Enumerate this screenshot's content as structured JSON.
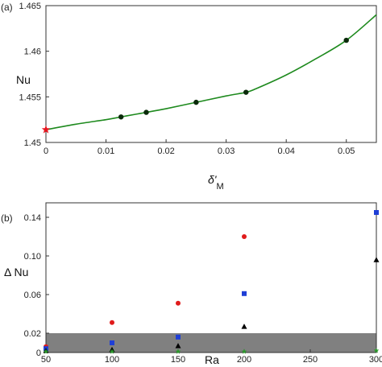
{
  "chart_data": [
    {
      "type": "line",
      "panel_label": "(a)",
      "xlabel": "δ'",
      "xlabel_sub": "M",
      "ylabel": "Nu",
      "xlim": [
        0,
        0.055
      ],
      "ylim": [
        1.45,
        1.465
      ],
      "xticks": [
        0,
        0.01,
        0.02,
        0.03,
        0.04,
        0.05
      ],
      "xtick_labels": [
        "0",
        "0.01",
        "0.02",
        "0.03",
        "0.04",
        "0.05"
      ],
      "yticks": [
        1.45,
        1.455,
        1.46,
        1.465
      ],
      "ytick_labels": [
        "1.45",
        "1.455",
        "1.46",
        "1.465"
      ],
      "curve": {
        "color": "#1e8a1e",
        "x": [
          0,
          0.005,
          0.01,
          0.0125,
          0.015,
          0.0167,
          0.02,
          0.025,
          0.03,
          0.0333,
          0.035,
          0.04,
          0.045,
          0.05,
          0.055
        ],
        "y": [
          1.4514,
          1.452,
          1.4525,
          1.4528,
          1.4531,
          1.4533,
          1.4537,
          1.4544,
          1.4551,
          1.4555,
          1.4559,
          1.4574,
          1.4592,
          1.4612,
          1.464
        ]
      },
      "points": {
        "color": "#0a2a0a",
        "x": [
          0.0125,
          0.0167,
          0.025,
          0.0333,
          0.05
        ],
        "y": [
          1.4528,
          1.4533,
          1.4544,
          1.4555,
          1.4612
        ]
      },
      "star": {
        "x": 0,
        "y": 1.4514,
        "color": "#e8141e"
      },
      "grid": false
    },
    {
      "type": "scatter",
      "panel_label": "(b)",
      "xlabel": "Ra",
      "ylabel": "Δ Nu",
      "xlim": [
        50,
        300
      ],
      "ylim": [
        0,
        0.155
      ],
      "xticks": [
        50,
        100,
        150,
        200,
        250,
        300
      ],
      "xtick_labels": [
        "50",
        "100",
        "150",
        "200",
        "250",
        "300"
      ],
      "yticks": [
        0,
        0.02,
        0.06,
        0.1,
        0.14
      ],
      "ytick_labels": [
        "0",
        "0.02",
        "0.06",
        "0.10",
        "0.14"
      ],
      "shaded_band": {
        "y0": 0,
        "y1": 0.02,
        "color": "#808080"
      },
      "series": [
        {
          "marker": "circle",
          "color": "#e01b1b",
          "x": [
            50,
            100,
            150,
            200
          ],
          "y": [
            0.006,
            0.031,
            0.051,
            0.12
          ]
        },
        {
          "marker": "square",
          "color": "#1f3fd6",
          "x": [
            50,
            100,
            150,
            200,
            300
          ],
          "y": [
            0.004,
            0.01,
            0.016,
            0.061,
            0.145
          ]
        },
        {
          "marker": "triangle",
          "color": "#000000",
          "x": [
            50,
            100,
            150,
            200,
            300
          ],
          "y": [
            0.002,
            0.003,
            0.007,
            0.027,
            0.096
          ]
        },
        {
          "marker": "star",
          "color": "#2a9a2a",
          "x": [
            50,
            100,
            150,
            200,
            300
          ],
          "y": [
            0.001,
            0.001,
            0.001,
            0.001,
            0.002
          ]
        }
      ],
      "grid": false
    }
  ]
}
